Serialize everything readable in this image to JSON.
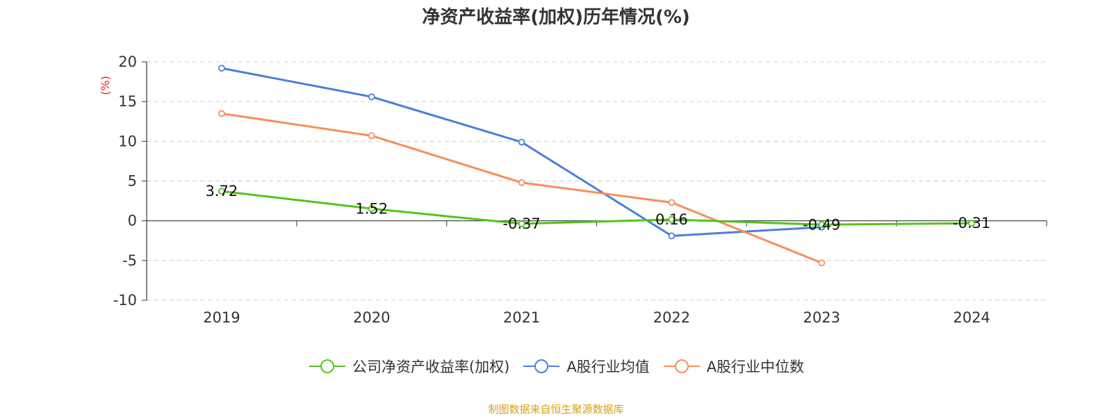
{
  "chart_data": {
    "type": "line",
    "title": "净资产收益率(加权)历年情况(%)",
    "ylabel": "(%)",
    "categories": [
      "2019",
      "2020",
      "2021",
      "2022",
      "2023",
      "2024"
    ],
    "ylim": [
      -10,
      20
    ],
    "yticks": [
      20,
      15,
      10,
      5,
      0,
      -5,
      -10
    ],
    "grid": true,
    "legend_position": "bottom",
    "series": [
      {
        "name": "公司净资产收益率(加权)",
        "color": "#52c41a",
        "values": [
          3.72,
          1.52,
          -0.37,
          0.16,
          -0.49,
          -0.31
        ],
        "labels": [
          "3.72",
          "1.52",
          "-0.37",
          "0.16",
          "-0.49",
          "-0.31"
        ]
      },
      {
        "name": "A股行业均值",
        "color": "#4a7fdc",
        "values": [
          19.2,
          15.6,
          9.9,
          -1.9,
          -0.8,
          null
        ]
      },
      {
        "name": "A股行业中位数",
        "color": "#f98c5b",
        "values": [
          13.5,
          10.7,
          4.8,
          2.3,
          -5.3,
          null
        ]
      }
    ]
  },
  "footer": {
    "source": "制图数据来自恒生聚源数据库"
  }
}
